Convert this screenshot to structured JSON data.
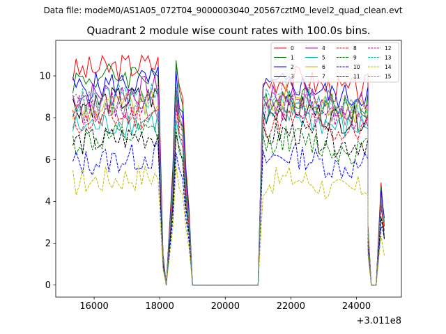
{
  "figure": {
    "suptitle": "Data file: modeM0/AS1A05_072T04_9000003040_20567cztM0_level2_quad_clean.evt"
  },
  "chart_data": {
    "type": "line",
    "title": "Quadrant 2 module wise count rates with 100.0s bins.",
    "xlabel": "",
    "ylabel": "",
    "x_offset_label": "+3.011e8",
    "x_offset": 301100000,
    "xlim": [
      301114830,
      301125370
    ],
    "ylim": [
      -0.58,
      11.7
    ],
    "x_ticks": [
      {
        "value": 301116000,
        "label": "16000"
      },
      {
        "value": 301118000,
        "label": "18000"
      },
      {
        "value": 301120000,
        "label": "20000"
      },
      {
        "value": 301122000,
        "label": "22000"
      },
      {
        "value": 301124000,
        "label": "24000"
      }
    ],
    "y_ticks": [
      {
        "value": 0,
        "label": "0"
      },
      {
        "value": 2,
        "label": "2"
      },
      {
        "value": 4,
        "label": "4"
      },
      {
        "value": 6,
        "label": "6"
      },
      {
        "value": 8,
        "label": "8"
      },
      {
        "value": 10,
        "label": "10"
      }
    ],
    "grid": false,
    "legend_position": "upper right",
    "legend_columns": 4,
    "segments": [
      {
        "x_start": 301115350,
        "x_end": 301118000,
        "kind": "data"
      },
      {
        "x_start": 301118000,
        "x_end": 301118200,
        "kind": "drop",
        "values_pct": [
          0.15,
          0.0
        ]
      },
      {
        "x_start": 301118200,
        "x_end": 301118600,
        "kind": "data",
        "peak": true
      },
      {
        "x_start": 301118600,
        "x_end": 301119000,
        "kind": "decline"
      },
      {
        "x_start": 301119000,
        "x_end": 301121000,
        "kind": "zero"
      },
      {
        "x_start": 301121000,
        "x_end": 301121150,
        "kind": "rise"
      },
      {
        "x_start": 301121150,
        "x_end": 301124350,
        "kind": "data"
      },
      {
        "x_start": 301124350,
        "x_end": 301124650,
        "kind": "zero"
      },
      {
        "x_start": 301124650,
        "x_end": 301124850,
        "kind": "spike"
      }
    ],
    "series": [
      {
        "name": "0",
        "color": "#ff0000",
        "dashed": false,
        "level_early": 10.2,
        "level_late": 9.6,
        "end": 2.8
      },
      {
        "name": "1",
        "color": "#008000",
        "dashed": false,
        "level_early": 9.8,
        "level_late": 8.8,
        "end": 3.0
      },
      {
        "name": "2",
        "color": "#0000ff",
        "dashed": false,
        "level_early": 9.4,
        "level_late": 9.3,
        "end": 3.2
      },
      {
        "name": "3",
        "color": "#000000",
        "dashed": false,
        "level_early": 8.6,
        "level_late": 8.2,
        "end": 2.2
      },
      {
        "name": "4",
        "color": "#bf00bf",
        "dashed": false,
        "level_early": 9.0,
        "level_late": 8.8,
        "end": 3.0
      },
      {
        "name": "5",
        "color": "#00bfbf",
        "dashed": false,
        "level_early": 7.5,
        "level_late": 7.8,
        "end": 3.0
      },
      {
        "name": "6",
        "color": "#bfbf00",
        "dashed": false,
        "level_early": 8.3,
        "level_late": 8.6,
        "end": 3.0
      },
      {
        "name": "7",
        "color": "#808080",
        "dashed": false,
        "level_early": 8.1,
        "level_late": 8.2,
        "end": 3.0
      },
      {
        "name": "8",
        "color": "#ff0000",
        "dashed": true,
        "level_early": 7.8,
        "level_late": 7.6,
        "end": 2.6
      },
      {
        "name": "9",
        "color": "#008000",
        "dashed": true,
        "level_early": 6.8,
        "level_late": 6.7,
        "end": 2.4
      },
      {
        "name": "10",
        "color": "#0000ff",
        "dashed": true,
        "level_early": 5.8,
        "level_late": 5.9,
        "end": 2.5
      },
      {
        "name": "11",
        "color": "#000000",
        "dashed": true,
        "level_early": 6.8,
        "level_late": 7.0,
        "end": 2.2
      },
      {
        "name": "12",
        "color": "#bf00bf",
        "dashed": true,
        "level_early": 8.4,
        "level_late": 8.2,
        "end": 3.0
      },
      {
        "name": "13",
        "color": "#00bfbf",
        "dashed": true,
        "level_early": 8.7,
        "level_late": 8.7,
        "end": 3.0
      },
      {
        "name": "14",
        "color": "#bfbf00",
        "dashed": true,
        "level_early": 4.9,
        "level_late": 4.8,
        "end": 1.4
      },
      {
        "name": "15",
        "color": "#808080",
        "dashed": true,
        "level_early": 8.6,
        "level_late": 8.9,
        "end": 3.0
      }
    ]
  }
}
